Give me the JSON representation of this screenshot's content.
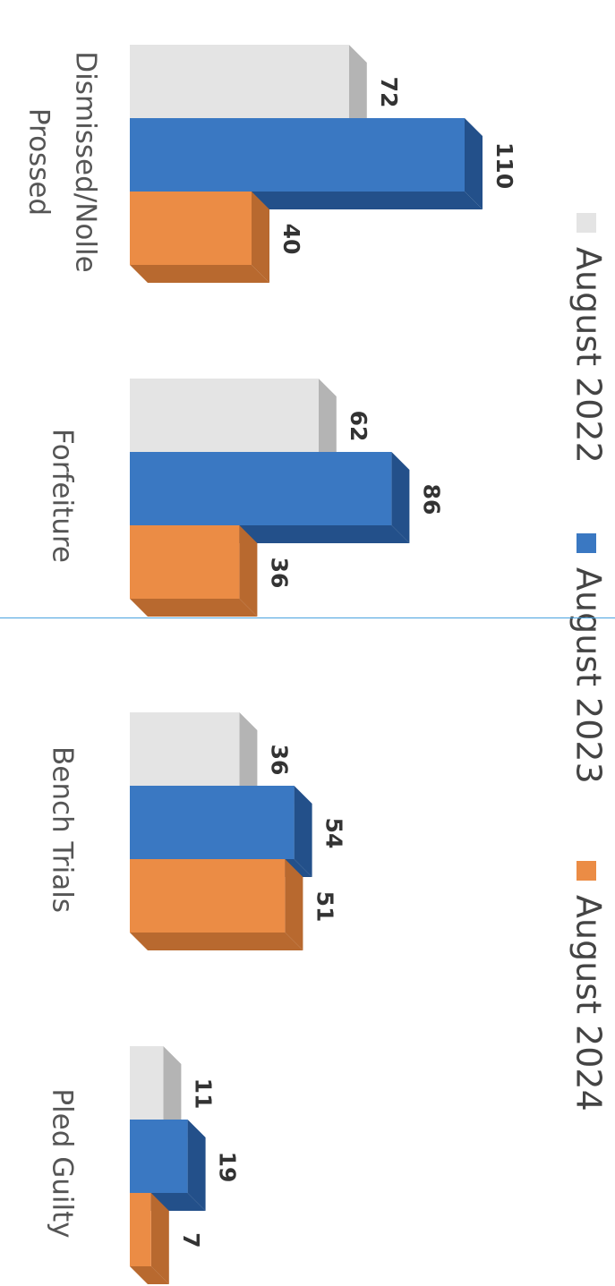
{
  "chart_data": {
    "type": "bar",
    "orientation": "rotated-90-clockwise",
    "categories": [
      "Dismissed/Nolle Prossed",
      "Forfeiture",
      "Bench Trials",
      "Pled Guilty"
    ],
    "category_lines": [
      [
        "Dismissed/Nolle",
        "Prossed"
      ],
      [
        "Forfeiture"
      ],
      [
        "Bench Trials"
      ],
      [
        "Pled Guilty"
      ]
    ],
    "series": [
      {
        "name": "August 2022",
        "values": [
          72,
          62,
          36,
          11
        ],
        "color": "#e4e4e4",
        "side_color": "#b4b4b4"
      },
      {
        "name": "August 2023",
        "values": [
          110,
          86,
          54,
          19
        ],
        "color": "#3a78c2",
        "side_color": "#23508a"
      },
      {
        "name": "August 2024",
        "values": [
          40,
          36,
          51,
          7
        ],
        "color": "#eb8c45",
        "side_color": "#b8692f"
      }
    ],
    "legend_position": "right",
    "grid": false,
    "three_d": true
  }
}
